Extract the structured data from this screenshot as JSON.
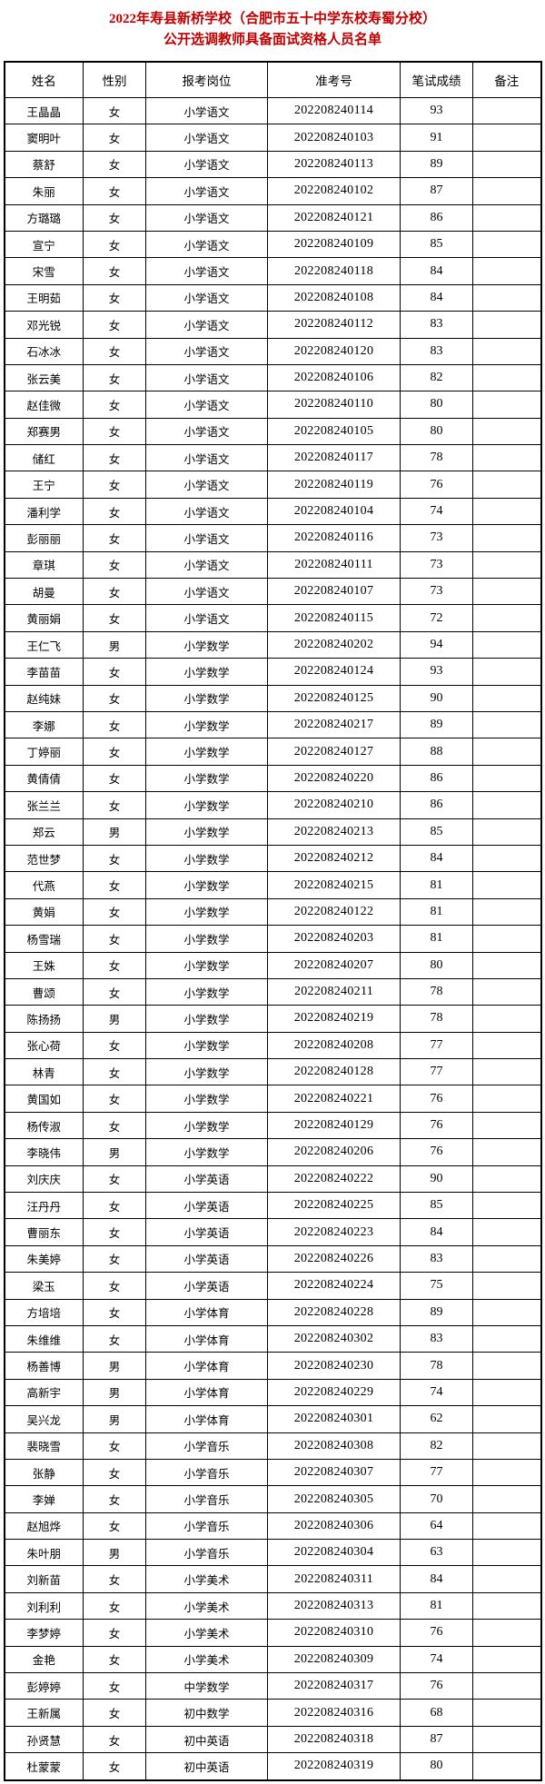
{
  "page": {
    "title_line1": "2022年寿县新桥学校（合肥市五十中学东校寿蜀分校）",
    "title_line2": "公开选调教师具备面试资格人员名单",
    "title_color": "#c00000"
  },
  "table": {
    "headers": [
      "姓名",
      "性别",
      "报考岗位",
      "准考号",
      "笔试成绩",
      "备注"
    ],
    "rows": [
      [
        "王晶晶",
        "女",
        "小学语文",
        "202208240114",
        "93",
        ""
      ],
      [
        "窦明叶",
        "女",
        "小学语文",
        "202208240103",
        "91",
        ""
      ],
      [
        "蔡舒",
        "女",
        "小学语文",
        "202208240113",
        "89",
        ""
      ],
      [
        "朱丽",
        "女",
        "小学语文",
        "202208240102",
        "87",
        ""
      ],
      [
        "方璐璐",
        "女",
        "小学语文",
        "202208240121",
        "86",
        ""
      ],
      [
        "宣宁",
        "女",
        "小学语文",
        "202208240109",
        "85",
        ""
      ],
      [
        "宋雪",
        "女",
        "小学语文",
        "202208240118",
        "84",
        ""
      ],
      [
        "王明茹",
        "女",
        "小学语文",
        "202208240108",
        "84",
        ""
      ],
      [
        "邓光锐",
        "女",
        "小学语文",
        "202208240112",
        "83",
        ""
      ],
      [
        "石冰冰",
        "女",
        "小学语文",
        "202208240120",
        "83",
        ""
      ],
      [
        "张云美",
        "女",
        "小学语文",
        "202208240106",
        "82",
        ""
      ],
      [
        "赵佳微",
        "女",
        "小学语文",
        "202208240110",
        "80",
        ""
      ],
      [
        "郑赛男",
        "女",
        "小学语文",
        "202208240105",
        "80",
        ""
      ],
      [
        "储红",
        "女",
        "小学语文",
        "202208240117",
        "78",
        ""
      ],
      [
        "王宁",
        "女",
        "小学语文",
        "202208240119",
        "76",
        ""
      ],
      [
        "潘利学",
        "女",
        "小学语文",
        "202208240104",
        "74",
        ""
      ],
      [
        "彭丽丽",
        "女",
        "小学语文",
        "202208240116",
        "73",
        ""
      ],
      [
        "章琪",
        "女",
        "小学语文",
        "202208240111",
        "73",
        ""
      ],
      [
        "胡曼",
        "女",
        "小学语文",
        "202208240107",
        "73",
        ""
      ],
      [
        "黄丽娟",
        "女",
        "小学语文",
        "202208240115",
        "72",
        ""
      ],
      [
        "王仁飞",
        "男",
        "小学数学",
        "202208240202",
        "94",
        ""
      ],
      [
        "李苗苗",
        "女",
        "小学数学",
        "202208240124",
        "93",
        ""
      ],
      [
        "赵纯妹",
        "女",
        "小学数学",
        "202208240125",
        "90",
        ""
      ],
      [
        "李娜",
        "女",
        "小学数学",
        "202208240217",
        "89",
        ""
      ],
      [
        "丁婷丽",
        "女",
        "小学数学",
        "202208240127",
        "88",
        ""
      ],
      [
        "黄倩倩",
        "女",
        "小学数学",
        "202208240220",
        "86",
        ""
      ],
      [
        "张兰兰",
        "女",
        "小学数学",
        "202208240210",
        "86",
        ""
      ],
      [
        "郑云",
        "男",
        "小学数学",
        "202208240213",
        "85",
        ""
      ],
      [
        "范世梦",
        "女",
        "小学数学",
        "202208240212",
        "84",
        ""
      ],
      [
        "代燕",
        "女",
        "小学数学",
        "202208240215",
        "81",
        ""
      ],
      [
        "黄娟",
        "女",
        "小学数学",
        "202208240122",
        "81",
        ""
      ],
      [
        "杨雪瑞",
        "女",
        "小学数学",
        "202208240203",
        "81",
        ""
      ],
      [
        "王姝",
        "女",
        "小学数学",
        "202208240207",
        "80",
        ""
      ],
      [
        "曹颂",
        "女",
        "小学数学",
        "202208240211",
        "78",
        ""
      ],
      [
        "陈扬扬",
        "男",
        "小学数学",
        "202208240219",
        "78",
        ""
      ],
      [
        "张心荷",
        "女",
        "小学数学",
        "202208240208",
        "77",
        ""
      ],
      [
        "林青",
        "女",
        "小学数学",
        "202208240128",
        "77",
        ""
      ],
      [
        "黄国如",
        "女",
        "小学数学",
        "202208240221",
        "76",
        ""
      ],
      [
        "杨传淑",
        "女",
        "小学数学",
        "202208240129",
        "76",
        ""
      ],
      [
        "李晓伟",
        "男",
        "小学数学",
        "202208240206",
        "76",
        ""
      ],
      [
        "刘庆庆",
        "女",
        "小学英语",
        "202208240222",
        "90",
        ""
      ],
      [
        "汪丹丹",
        "女",
        "小学英语",
        "202208240225",
        "85",
        ""
      ],
      [
        "曹丽东",
        "女",
        "小学英语",
        "202208240223",
        "84",
        ""
      ],
      [
        "朱美婷",
        "女",
        "小学英语",
        "202208240226",
        "83",
        ""
      ],
      [
        "梁玉",
        "女",
        "小学英语",
        "202208240224",
        "75",
        ""
      ],
      [
        "方培培",
        "女",
        "小学体育",
        "202208240228",
        "89",
        ""
      ],
      [
        "朱维维",
        "女",
        "小学体育",
        "202208240302",
        "83",
        ""
      ],
      [
        "杨善博",
        "男",
        "小学体育",
        "202208240230",
        "78",
        ""
      ],
      [
        "高新宇",
        "男",
        "小学体育",
        "202208240229",
        "74",
        ""
      ],
      [
        "吴兴龙",
        "男",
        "小学体育",
        "202208240301",
        "62",
        ""
      ],
      [
        "裴晓雪",
        "女",
        "小学音乐",
        "202208240308",
        "82",
        ""
      ],
      [
        "张静",
        "女",
        "小学音乐",
        "202208240307",
        "77",
        ""
      ],
      [
        "李婵",
        "女",
        "小学音乐",
        "202208240305",
        "70",
        ""
      ],
      [
        "赵旭烨",
        "女",
        "小学音乐",
        "202208240306",
        "64",
        ""
      ],
      [
        "朱叶朋",
        "男",
        "小学音乐",
        "202208240304",
        "63",
        ""
      ],
      [
        "刘新苗",
        "女",
        "小学美术",
        "202208240311",
        "84",
        ""
      ],
      [
        "刘利利",
        "女",
        "小学美术",
        "202208240313",
        "81",
        ""
      ],
      [
        "李梦婷",
        "女",
        "小学美术",
        "202208240310",
        "76",
        ""
      ],
      [
        "金艳",
        "女",
        "小学美术",
        "202208240309",
        "74",
        ""
      ],
      [
        "彭婷婷",
        "女",
        "中学数学",
        "202208240317",
        "76",
        ""
      ],
      [
        "王新属",
        "女",
        "初中数学",
        "202208240316",
        "68",
        ""
      ],
      [
        "孙贤慧",
        "女",
        "初中英语",
        "202208240318",
        "87",
        ""
      ],
      [
        "杜蒙蒙",
        "女",
        "初中英语",
        "202208240319",
        "80",
        ""
      ]
    ]
  }
}
